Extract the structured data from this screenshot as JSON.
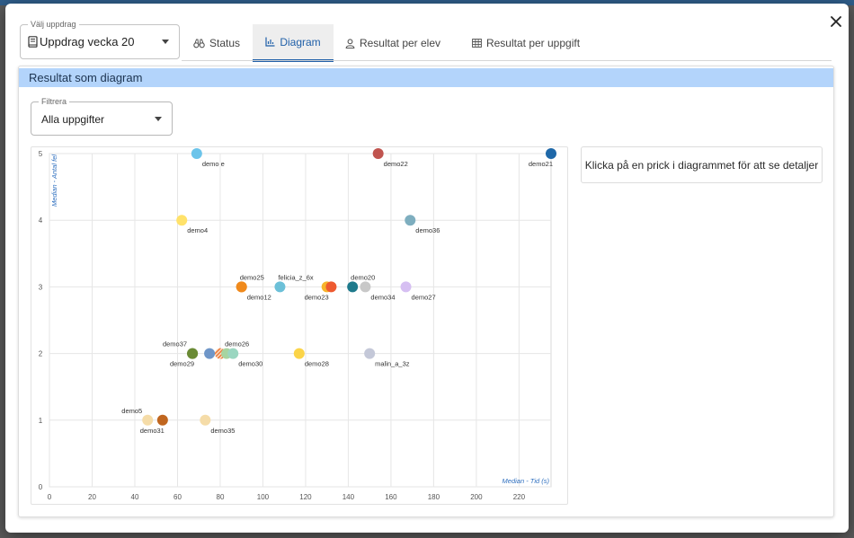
{
  "assignment_select": {
    "legend": "Välj uppdrag",
    "value": "Uppdrag vecka 20"
  },
  "tabs": [
    {
      "label": "Status",
      "icon": "binoculars-icon",
      "active": false
    },
    {
      "label": "Diagram",
      "icon": "chart-icon",
      "active": true
    },
    {
      "label": "Resultat per elev",
      "icon": "person-icon",
      "active": false
    },
    {
      "label": "Resultat per uppgift",
      "icon": "table-icon",
      "active": false
    }
  ],
  "panel": {
    "title": "Resultat som diagram",
    "filter": {
      "legend": "Filtrera",
      "value": "Alla uppgifter"
    },
    "info_text": "Klicka på en prick i diagrammet för att se detaljer"
  },
  "chart_data": {
    "type": "scatter",
    "xlabel": "Median - Tid (s)",
    "ylabel": "Median - Antal fel",
    "xlim": [
      0,
      235
    ],
    "ylim": [
      0,
      5
    ],
    "x_ticks": [
      0,
      20,
      40,
      60,
      80,
      100,
      120,
      140,
      160,
      180,
      200,
      220
    ],
    "y_ticks": [
      0,
      1,
      2,
      3,
      4,
      5
    ],
    "grid": true,
    "points": [
      {
        "label": "demo e",
        "x": 69,
        "y": 5,
        "color": "#6cc4ea",
        "label_pos": "below-right"
      },
      {
        "label": "demo22",
        "x": 154,
        "y": 5,
        "color": "#c0544f",
        "label_pos": "below-right"
      },
      {
        "label": "demo21",
        "x": 235,
        "y": 5,
        "color": "#1f68a8",
        "label_pos": "below-left"
      },
      {
        "label": "demo4",
        "x": 62,
        "y": 4,
        "color": "#ffe26a",
        "label_pos": "below-right"
      },
      {
        "label": "demo36",
        "x": 169,
        "y": 4,
        "color": "#7eaebf",
        "label_pos": "below-right"
      },
      {
        "label": "demo25",
        "x": 90,
        "y": 3,
        "color": "#f08a1c",
        "label_pos": "above-right"
      },
      {
        "label": "demo12",
        "x": 90,
        "y": 3,
        "color": "#f08a1c",
        "label_pos": "below-right"
      },
      {
        "label": "felicia_z_6x",
        "x": 108,
        "y": 3,
        "color": "#6cc0d8",
        "label_pos": "above-right"
      },
      {
        "label": "demo23",
        "x": 130,
        "y": 3,
        "color": "#f7b42c",
        "label_pos": "below-left"
      },
      {
        "label": "",
        "x": 132,
        "y": 3,
        "color": "#ee5a30",
        "label_pos": "none"
      },
      {
        "label": "demo20",
        "x": 142,
        "y": 3,
        "color": "#1e7a8c",
        "label_pos": "above-right"
      },
      {
        "label": "demo34",
        "x": 148,
        "y": 3,
        "color": "#c8c8c8",
        "label_pos": "below-right"
      },
      {
        "label": "demo27",
        "x": 167,
        "y": 3,
        "color": "#d6bff2",
        "label_pos": "below-right"
      },
      {
        "label": "demo37",
        "x": 67,
        "y": 2,
        "color": "#6a8a35",
        "label_pos": "above-left"
      },
      {
        "label": "demo29",
        "x": 67,
        "y": 2,
        "color": "#6a8a35",
        "label_pos": "below-left"
      },
      {
        "label": "",
        "x": 75,
        "y": 2,
        "color": "#6f96c8",
        "label_pos": "none"
      },
      {
        "label": "",
        "x": 80,
        "y": 2,
        "color": "#f08a4f",
        "label_pos": "none",
        "hatched": true
      },
      {
        "label": "demo26",
        "x": 83,
        "y": 2,
        "color": "#a7d4a0",
        "label_pos": "above-right"
      },
      {
        "label": "demo30",
        "x": 86,
        "y": 2,
        "color": "#9ad6c0",
        "label_pos": "below-right"
      },
      {
        "label": "demo28",
        "x": 117,
        "y": 2,
        "color": "#fbd448",
        "label_pos": "below-right"
      },
      {
        "label": "malin_a_3z",
        "x": 150,
        "y": 2,
        "color": "#c4c8d8",
        "label_pos": "below-right"
      },
      {
        "label": "demo5",
        "x": 46,
        "y": 1,
        "color": "#f5dca8",
        "label_pos": "above-left"
      },
      {
        "label": "demo31",
        "x": 53,
        "y": 1,
        "color": "#c0661f",
        "label_pos": "below-left"
      },
      {
        "label": "demo35",
        "x": 73,
        "y": 1,
        "color": "#f5dca8",
        "label_pos": "below-right"
      }
    ]
  }
}
